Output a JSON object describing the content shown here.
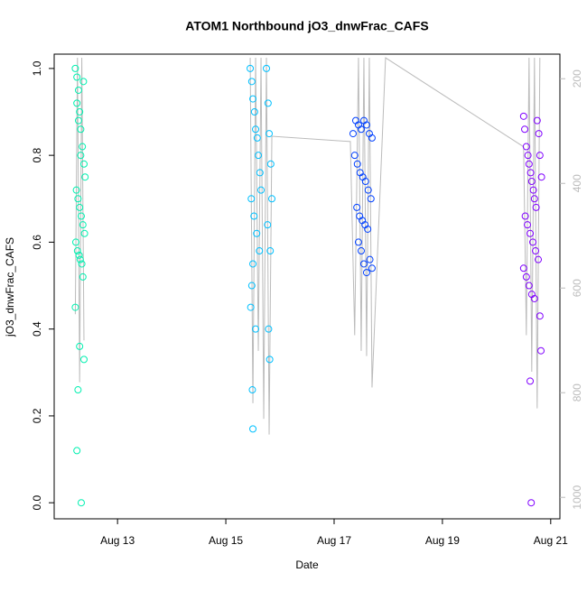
{
  "chart_data": {
    "type": "scatter",
    "title": "ATOM1 Northbound jO3_dnwFrac_CAFS",
    "x_label": "Date",
    "y_label": "jO3_dnwFrac_CAFS",
    "xlim": [
      11.83,
      21.17
    ],
    "xticks": [
      {
        "value": 13,
        "label": "Aug 13"
      },
      {
        "value": 15,
        "label": "Aug 15"
      },
      {
        "value": 17,
        "label": "Aug 17"
      },
      {
        "value": 19,
        "label": "Aug 19"
      },
      {
        "value": 21,
        "label": "Aug 21"
      }
    ],
    "ylim": [
      -0.037,
      1.033
    ],
    "yticks": [
      {
        "value": 0,
        "label": "0.0"
      },
      0.2,
      0.4,
      0.6,
      0.8,
      {
        "value": 1,
        "label": "1.0"
      }
    ],
    "y2lim": [
      1041,
      153
    ],
    "y2ticks": [
      200,
      400,
      600,
      800,
      1000
    ],
    "series": [
      {
        "color": "#00f0b0",
        "x": [
          12.22,
          12.25,
          12.28,
          12.3,
          12.32,
          12.35,
          12.38,
          12.4,
          12.24,
          12.27,
          12.3,
          12.33,
          12.36,
          12.39,
          12.23,
          12.26,
          12.29,
          12.31,
          12.34,
          12.37,
          12.25,
          12.28,
          12.32,
          12.36,
          12.22,
          12.3,
          12.38,
          12.27,
          12.25,
          12.33
        ],
        "values": [
          1.0,
          0.98,
          0.95,
          0.9,
          0.86,
          0.82,
          0.78,
          0.75,
          0.72,
          0.7,
          0.68,
          0.66,
          0.64,
          0.62,
          0.6,
          0.58,
          0.57,
          0.56,
          0.55,
          0.97,
          0.92,
          0.88,
          0.8,
          0.52,
          0.45,
          0.36,
          0.33,
          0.26,
          0.12,
          0.0
        ]
      },
      {
        "color": "#00c0ff",
        "x": [
          15.45,
          15.48,
          15.5,
          15.53,
          15.55,
          15.58,
          15.6,
          15.63,
          15.65,
          15.47,
          15.52,
          15.57,
          15.62,
          15.75,
          15.78,
          15.8,
          15.83,
          15.85,
          15.77,
          15.82,
          15.5,
          15.48,
          15.46,
          15.55,
          15.79,
          15.81,
          15.49,
          15.5
        ],
        "values": [
          1.0,
          0.97,
          0.93,
          0.9,
          0.86,
          0.84,
          0.8,
          0.76,
          0.72,
          0.7,
          0.66,
          0.62,
          0.58,
          1.0,
          0.92,
          0.85,
          0.78,
          0.7,
          0.64,
          0.58,
          0.55,
          0.5,
          0.45,
          0.4,
          0.4,
          0.33,
          0.26,
          0.17
        ]
      },
      {
        "color": "#0040ff",
        "x": [
          17.35,
          17.4,
          17.45,
          17.5,
          17.55,
          17.6,
          17.65,
          17.7,
          17.38,
          17.43,
          17.48,
          17.53,
          17.58,
          17.63,
          17.68,
          17.42,
          17.47,
          17.52,
          17.57,
          17.62,
          17.45,
          17.5,
          17.55,
          17.6,
          17.66,
          17.7
        ],
        "values": [
          0.85,
          0.88,
          0.87,
          0.86,
          0.88,
          0.87,
          0.85,
          0.84,
          0.8,
          0.78,
          0.76,
          0.75,
          0.74,
          0.72,
          0.7,
          0.68,
          0.66,
          0.65,
          0.64,
          0.63,
          0.6,
          0.58,
          0.55,
          0.53,
          0.56,
          0.54
        ]
      },
      {
        "color": "#8000ff",
        "x": [
          20.5,
          20.52,
          20.55,
          20.58,
          20.6,
          20.63,
          20.65,
          20.68,
          20.7,
          20.73,
          20.75,
          20.78,
          20.8,
          20.83,
          20.53,
          20.57,
          20.62,
          20.67,
          20.72,
          20.77,
          20.5,
          20.55,
          20.6,
          20.65,
          20.7,
          20.8,
          20.82,
          20.62,
          20.64
        ],
        "values": [
          0.89,
          0.86,
          0.82,
          0.8,
          0.78,
          0.76,
          0.74,
          0.72,
          0.7,
          0.68,
          0.88,
          0.85,
          0.8,
          0.75,
          0.66,
          0.64,
          0.62,
          0.6,
          0.58,
          0.56,
          0.54,
          0.52,
          0.5,
          0.48,
          0.47,
          0.43,
          0.35,
          0.28,
          0.0
        ]
      },
      {
        "color": "#bbbbbb",
        "axis": "y2",
        "x": [
          12.22,
          12.26,
          12.3,
          12.34,
          12.38,
          15.2,
          15.45,
          15.5,
          15.55,
          15.6,
          15.65,
          15.7,
          15.75,
          15.8,
          15.85,
          17.3,
          17.38,
          17.45,
          17.5,
          17.55,
          17.6,
          17.65,
          17.7,
          17.95,
          20.5,
          20.55,
          20.6,
          20.65,
          20.7,
          20.75,
          20.8
        ],
        "values": [
          650,
          160,
          780,
          160,
          700,
          null,
          160,
          820,
          160,
          720,
          160,
          850,
          160,
          880,
          310,
          320,
          690,
          160,
          720,
          160,
          730,
          160,
          790,
          160,
          330,
          690,
          160,
          760,
          160,
          830,
          160
        ]
      }
    ]
  }
}
